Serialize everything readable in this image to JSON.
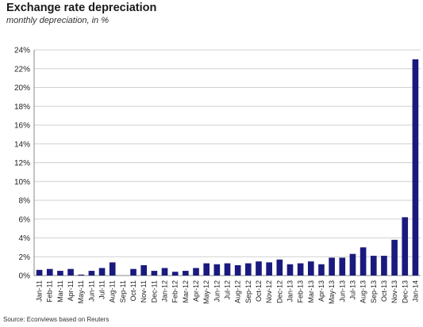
{
  "chart_data": {
    "type": "bar",
    "title": "Exchange rate depreciation",
    "subtitle": "monthly depreciation, in %",
    "source": "Source: Econviews based on Reuters",
    "categories": [
      "Jan-11",
      "Feb-11",
      "Mar-11",
      "Apr-11",
      "May-11",
      "Jun-11",
      "Jul-11",
      "Aug-11",
      "Sep-11",
      "Oct-11",
      "Nov-11",
      "Dec-11",
      "Jan-12",
      "Feb-12",
      "Mar-12",
      "Apr-12",
      "May-12",
      "Jun-12",
      "Jul-12",
      "Aug-12",
      "Sep-12",
      "Oct-12",
      "Nov-12",
      "Dec-12",
      "Jan-13",
      "Feb-13",
      "Mar-13",
      "Apr-13",
      "May-13",
      "Jun-13",
      "Jul-13",
      "Aug-13",
      "Sep-13",
      "Oct-13",
      "Nov-13",
      "Dec-13",
      "Jan-14"
    ],
    "values": [
      0.6,
      0.7,
      0.5,
      0.7,
      0.1,
      0.5,
      0.8,
      1.4,
      0.0,
      0.7,
      1.1,
      0.5,
      0.8,
      0.4,
      0.5,
      0.8,
      1.3,
      1.2,
      1.3,
      1.1,
      1.3,
      1.5,
      1.4,
      1.7,
      1.2,
      1.3,
      1.5,
      1.2,
      1.9,
      1.9,
      2.3,
      3.0,
      2.1,
      2.1,
      3.8,
      6.2,
      23.0
    ],
    "ylim": [
      0,
      24
    ],
    "ytick_step": 2,
    "ytick_suffix": "%",
    "grid": true,
    "bar_color": "#1a1a7e"
  }
}
